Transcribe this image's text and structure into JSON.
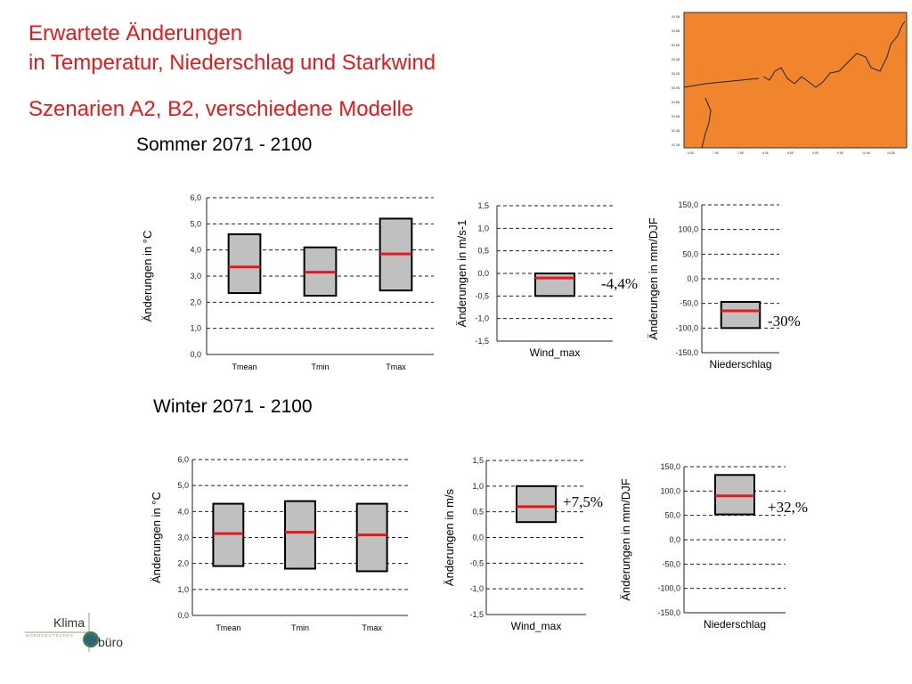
{
  "title": {
    "line1": "Erwartete Änderungen",
    "line2": "in Temperatur, Niederschlag und Starkwind",
    "line3": "Szenarien A2, B2, verschiedene Modelle"
  },
  "summer_label": "Sommer 2071 - 2100",
  "winter_label": "Winter 2071 - 2100",
  "logo": {
    "text_top": "Klima",
    "text_small": "NORDDEUTSCHES",
    "text_bottom": "büro"
  },
  "colors": {
    "title": "#e31a1c",
    "median": "#e31a1c",
    "box_fill": "#c0c0c0",
    "map_fill": "#f0852d"
  },
  "pct_labels": {
    "s_wind": "-4,4%",
    "s_precip": "-30%",
    "w_wind": "+7,5%",
    "w_precip": "+32,%"
  },
  "chart_data": [
    {
      "id": "summer_temp",
      "type": "box",
      "ylabel": "Änderungen in °C",
      "ylim": [
        0,
        6
      ],
      "yticks": [
        0,
        1,
        2,
        3,
        4,
        5,
        6
      ],
      "tick_labels": [
        "0,0",
        "1,0",
        "2,0",
        "3,0",
        "4,0",
        "5,0",
        "6,0"
      ],
      "categories": [
        "Tmean",
        "Tmin",
        "Tmax"
      ],
      "series": [
        {
          "low": 2.35,
          "high": 4.6,
          "median": 3.35
        },
        {
          "low": 2.25,
          "high": 4.1,
          "median": 3.15
        },
        {
          "low": 2.45,
          "high": 5.2,
          "median": 3.85
        }
      ]
    },
    {
      "id": "summer_wind",
      "type": "box",
      "ylabel": "Änderungen in m/s-1",
      "ylim": [
        -1.5,
        1.5
      ],
      "yticks": [
        -1.5,
        -1,
        -0.5,
        0,
        0.5,
        1,
        1.5
      ],
      "tick_labels": [
        "-1,5",
        "-1,0",
        "-0,5",
        "0,0",
        "0,5",
        "1,0",
        "1,5"
      ],
      "categories": [
        "Wind_max"
      ],
      "series": [
        {
          "low": -0.5,
          "high": 0.0,
          "median": -0.1
        }
      ]
    },
    {
      "id": "summer_precip",
      "type": "box",
      "ylabel": "Änderungen in mm/DJF",
      "ylim": [
        -150,
        150
      ],
      "yticks": [
        -150,
        -100,
        -50,
        0,
        50,
        100,
        150
      ],
      "tick_labels": [
        "-150,0",
        "-100,0",
        "-50,0",
        "0,0",
        "50,0",
        "100,0",
        "150,0"
      ],
      "categories": [
        "Niederschlag"
      ],
      "series": [
        {
          "low": -100,
          "high": -47,
          "median": -65
        }
      ]
    },
    {
      "id": "winter_temp",
      "type": "box",
      "ylabel": "Änderungen in °C",
      "ylim": [
        0,
        6
      ],
      "yticks": [
        0,
        1,
        2,
        3,
        4,
        5,
        6
      ],
      "tick_labels": [
        "0,0",
        "1,0",
        "2,0",
        "3,0",
        "4,0",
        "5,0",
        "6,0"
      ],
      "categories": [
        "Tmean",
        "Tmin",
        "Tmax"
      ],
      "series": [
        {
          "low": 1.9,
          "high": 4.3,
          "median": 3.15
        },
        {
          "low": 1.8,
          "high": 4.4,
          "median": 3.2
        },
        {
          "low": 1.7,
          "high": 4.3,
          "median": 3.1
        }
      ]
    },
    {
      "id": "winter_wind",
      "type": "box",
      "ylabel": "Änderungen in m/s",
      "ylim": [
        -1.5,
        1.5
      ],
      "yticks": [
        -1.5,
        -1,
        -0.5,
        0,
        0.5,
        1,
        1.5
      ],
      "tick_labels": [
        "-1,5",
        "-1,0",
        "-0,5",
        "0,0",
        "0,5",
        "1,0",
        "1,5"
      ],
      "categories": [
        "Wind_max"
      ],
      "series": [
        {
          "low": 0.3,
          "high": 1.0,
          "median": 0.6
        }
      ]
    },
    {
      "id": "winter_precip",
      "type": "box",
      "ylabel": "Änderungen in mm/DJF",
      "ylim": [
        -150,
        150
      ],
      "yticks": [
        -150,
        -100,
        -50,
        0,
        50,
        100,
        150
      ],
      "tick_labels": [
        "-150,0",
        "-100,0",
        "-50,0",
        "0,0",
        "50,0",
        "100,0",
        "150,0"
      ],
      "categories": [
        "Niederschlag"
      ],
      "series": [
        {
          "low": 52,
          "high": 133,
          "median": 90
        }
      ]
    }
  ]
}
